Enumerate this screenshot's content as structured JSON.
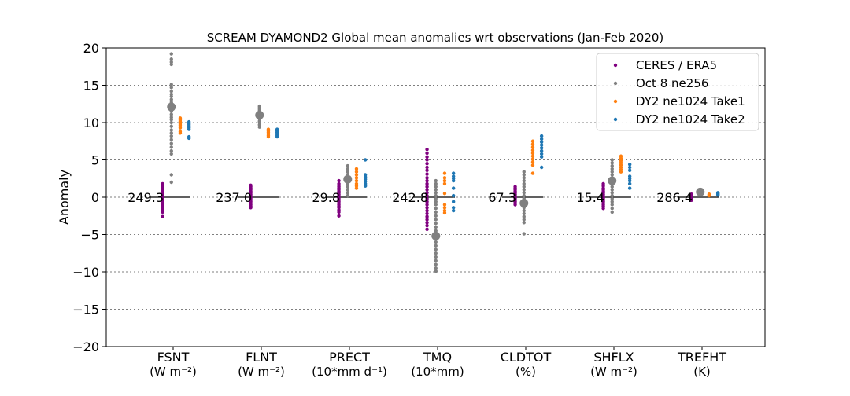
{
  "chart_data": {
    "type": "scatter",
    "title": "SCREAM DYAMOND2 Global mean anomalies wrt observations (Jan-Feb 2020)",
    "xlabel": "",
    "ylabel": "Anomaly",
    "ylim": [
      -20,
      20
    ],
    "yticks": [
      -20,
      -15,
      -10,
      -5,
      0,
      5,
      10,
      15,
      20
    ],
    "ytick_labels": [
      "−20",
      "−15",
      "−10",
      "−5",
      "0",
      "5",
      "10",
      "15",
      "20"
    ],
    "grid": "horizontal dotted",
    "legend_position": "top-right",
    "categories": [
      {
        "name": "FSNT",
        "unit": "(W m⁻²)",
        "obs_mean_label": "249.3"
      },
      {
        "name": "FLNT",
        "unit": "(W m⁻²)",
        "obs_mean_label": "237.0"
      },
      {
        "name": "PRECT",
        "unit": "(10*mm d⁻¹)",
        "obs_mean_label": "29.8"
      },
      {
        "name": "TMQ",
        "unit": "(10*mm)",
        "obs_mean_label": "242.8"
      },
      {
        "name": "CLDTOT",
        "unit": "(%)",
        "obs_mean_label": "67.3"
      },
      {
        "name": "SHFLX",
        "unit": "(W m⁻²)",
        "obs_mean_label": "15.4"
      },
      {
        "name": "TREFHT",
        "unit": "(K)",
        "obs_mean_label": "286.4"
      }
    ],
    "series": [
      {
        "name": "CERES / ERA5",
        "color": "#800080",
        "offset": -0.12,
        "values": [
          [
            1.8,
            1.6,
            1.4,
            1.2,
            1.0,
            0.8,
            0.6,
            0.4,
            0.2,
            0.0,
            -0.2,
            -0.4,
            -0.6,
            -0.8,
            -1.0,
            -1.2,
            -1.4,
            -1.7,
            -2.0,
            -2.6
          ],
          [
            1.6,
            1.4,
            1.2,
            1.0,
            0.8,
            0.6,
            0.4,
            0.2,
            0.0,
            -0.2,
            -0.4,
            -0.6,
            -0.8,
            -1.0,
            -1.2,
            -1.4
          ],
          [
            2.2,
            1.8,
            1.6,
            1.4,
            1.2,
            1.0,
            0.8,
            0.6,
            0.4,
            0.2,
            0.0,
            -0.2,
            -0.4,
            -0.6,
            -0.8,
            -1.0,
            -1.2,
            -1.4,
            -1.7,
            -2.0,
            -2.5
          ],
          [
            6.4,
            5.9,
            5.4,
            5.0,
            4.5,
            4.0,
            3.6,
            3.1,
            2.6,
            2.2,
            1.8,
            1.4,
            1.0,
            0.6,
            0.2,
            -0.2,
            -0.6,
            -1.0,
            -1.4,
            -1.8,
            -2.2,
            -2.6,
            -3.0,
            -3.4,
            -3.8,
            -4.3
          ],
          [
            1.4,
            1.2,
            1.0,
            0.8,
            0.6,
            0.4,
            0.2,
            0.0,
            -0.2,
            -0.4,
            -0.6,
            -0.8,
            -1.0
          ],
          [
            1.8,
            1.5,
            1.2,
            1.0,
            0.8,
            0.6,
            0.4,
            0.2,
            0.0,
            -0.2,
            -0.4,
            -0.6,
            -0.8,
            -1.0,
            -1.2,
            -1.5
          ],
          [
            0.4,
            0.3,
            0.2,
            0.1,
            0.0,
            -0.1,
            -0.2,
            -0.3,
            -0.4
          ]
        ]
      },
      {
        "name": "Oct 8 ne256",
        "color": "#808080",
        "offset": -0.02,
        "values": [
          [
            19.2,
            18.5,
            18.1,
            17.8,
            15.1,
            14.7,
            14.2,
            13.8,
            13.5,
            13.1,
            12.7,
            12.3,
            11.9,
            11.5,
            11.1,
            10.7,
            10.4,
            10.0,
            9.5,
            9.0,
            8.6,
            8.2,
            7.7,
            7.2,
            6.7,
            6.2,
            5.8,
            3.0,
            2.0
          ],
          [
            12.2,
            12.0,
            11.8,
            11.6,
            11.3,
            11.0,
            10.8,
            10.5,
            10.2,
            10.0,
            9.7,
            9.4
          ],
          [
            4.2,
            3.8,
            3.4,
            3.0,
            2.6,
            2.2,
            1.8,
            1.4,
            1.0,
            0.6,
            0.2
          ],
          [
            2.2,
            1.8,
            1.4,
            1.0,
            0.6,
            0.2,
            -0.2,
            -0.6,
            -1.0,
            -1.5,
            -2.0,
            -2.5,
            -3.0,
            -3.5,
            -4.0,
            -4.5,
            -5.0,
            -5.5,
            -6.0,
            -6.5,
            -7.0,
            -7.5,
            -8.0,
            -8.5,
            -9.0,
            -9.5,
            -9.9
          ],
          [
            3.4,
            3.0,
            2.6,
            2.2,
            1.8,
            1.4,
            1.0,
            0.6,
            0.2,
            -0.2,
            -0.6,
            -1.0,
            -1.4,
            -1.8,
            -2.2,
            -2.6,
            -3.0,
            -3.4,
            -4.9
          ],
          [
            5.0,
            4.6,
            4.2,
            3.8,
            3.4,
            3.0,
            2.6,
            2.2,
            1.8,
            1.4,
            1.0,
            0.6,
            0.2,
            -0.2,
            -0.6,
            -1.0,
            -1.5,
            -2.0
          ],
          [
            0.9,
            0.8,
            0.7,
            0.6,
            0.5
          ]
        ],
        "means": [
          12.1,
          11.0,
          2.4,
          -5.2,
          -0.8,
          2.2,
          0.7
        ]
      },
      {
        "name": "DY2 ne1024 Take1",
        "color": "#ff7f0e",
        "offset": 0.08,
        "values": [
          [
            10.6,
            10.4,
            10.2,
            10.0,
            9.8,
            9.6,
            9.3,
            8.8,
            8.6
          ],
          [
            9.1,
            8.9,
            8.7,
            8.5,
            8.3,
            8.1
          ],
          [
            3.8,
            3.4,
            3.0,
            2.6,
            2.2,
            1.8,
            1.5,
            1.2
          ],
          [
            3.2,
            2.6,
            2.2,
            1.8,
            0.5,
            -1.0,
            -1.4,
            -1.8,
            -2.1
          ],
          [
            7.5,
            7.1,
            6.7,
            6.3,
            5.9,
            5.5,
            5.1,
            4.7,
            4.3,
            3.2
          ],
          [
            5.5,
            5.2,
            4.9,
            4.6,
            4.3,
            4.0,
            3.7,
            3.4
          ],
          [
            0.4,
            0.3,
            0.2
          ]
        ]
      },
      {
        "name": "DY2 ne1024 Take2",
        "color": "#1f77b4",
        "offset": 0.18,
        "values": [
          [
            10.1,
            9.9,
            9.7,
            9.5,
            9.3,
            9.1,
            8.1,
            7.9
          ],
          [
            9.1,
            8.9,
            8.7,
            8.5,
            8.3,
            8.1
          ],
          [
            5.0,
            3.0,
            2.7,
            2.4,
            2.1,
            1.8,
            1.5
          ],
          [
            3.2,
            2.8,
            2.5,
            2.2,
            1.2,
            0.2,
            -0.6,
            -1.4,
            -1.8
          ],
          [
            8.2,
            7.8,
            7.4,
            7.0,
            6.6,
            6.2,
            5.8,
            5.4,
            4.0
          ],
          [
            4.4,
            4.0,
            3.6,
            2.8,
            2.5,
            2.2,
            1.8,
            1.2
          ],
          [
            0.6,
            0.5,
            0.4,
            0.3
          ]
        ]
      }
    ]
  }
}
